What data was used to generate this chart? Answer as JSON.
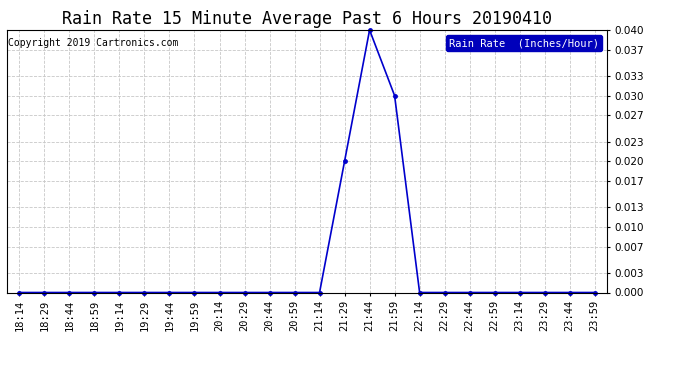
{
  "title": "Rain Rate 15 Minute Average Past 6 Hours 20190410",
  "copyright": "Copyright 2019 Cartronics.com",
  "legend_label": "Rain Rate  (Inches/Hour)",
  "line_color": "#0000cc",
  "background_color": "#ffffff",
  "plot_bg_color": "#ffffff",
  "grid_color": "#c8c8c8",
  "border_color": "#000000",
  "ylim": [
    0.0,
    0.04
  ],
  "yticks": [
    0.0,
    0.003,
    0.007,
    0.01,
    0.013,
    0.017,
    0.02,
    0.023,
    0.027,
    0.03,
    0.033,
    0.037,
    0.04
  ],
  "x_labels": [
    "18:14",
    "18:29",
    "18:44",
    "18:59",
    "19:14",
    "19:29",
    "19:44",
    "19:59",
    "20:14",
    "20:29",
    "20:44",
    "20:59",
    "21:14",
    "21:29",
    "21:44",
    "21:59",
    "22:14",
    "22:29",
    "22:44",
    "22:59",
    "23:14",
    "23:29",
    "23:44",
    "23:59"
  ],
  "data_points": [
    0.0,
    0.0,
    0.0,
    0.0,
    0.0,
    0.0,
    0.0,
    0.0,
    0.0,
    0.0,
    0.0,
    0.0,
    0.0,
    0.02,
    0.04,
    0.03,
    0.0,
    0.0,
    0.0,
    0.0,
    0.0,
    0.0,
    0.0,
    0.0
  ],
  "title_fontsize": 12,
  "axis_fontsize": 7.5,
  "copyright_fontsize": 7,
  "legend_fontsize": 7.5,
  "marker": "o",
  "marker_size": 2.5,
  "linewidth": 1.2
}
